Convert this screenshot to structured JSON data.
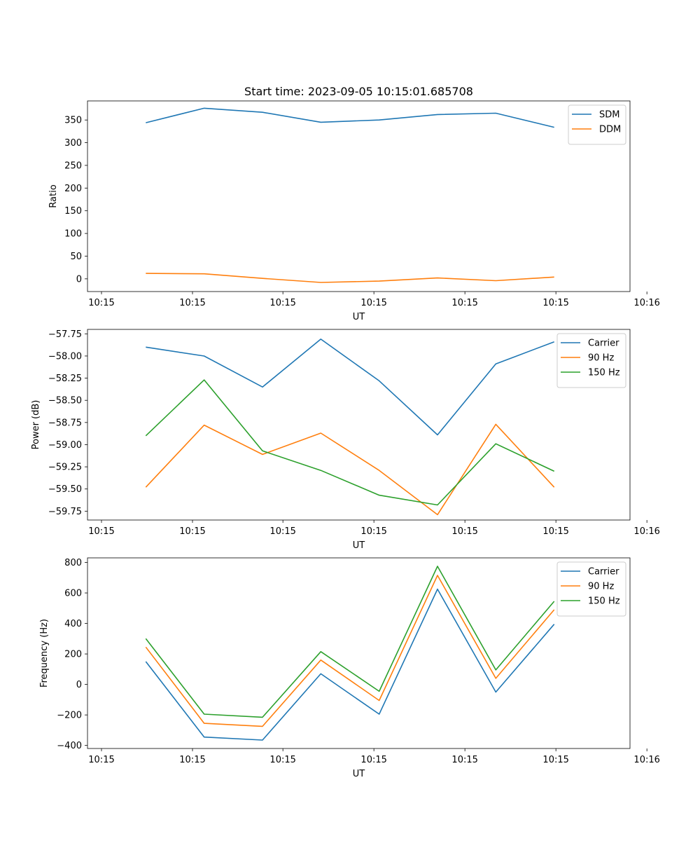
{
  "chart_data": [
    {
      "type": "line",
      "title": "Start time: 2023-09-05 10:15:01.685708",
      "xlabel": "UT",
      "ylabel": "Ratio",
      "xlim": [
        -1,
        8.3
      ],
      "ylim": [
        -28,
        392
      ],
      "x_ticks": [
        {
          "x": -0.76,
          "label": "10:15"
        },
        {
          "x": 0.8,
          "label": "10:15"
        },
        {
          "x": 2.35,
          "label": "10:15"
        },
        {
          "x": 3.91,
          "label": "10:15"
        },
        {
          "x": 5.47,
          "label": "10:15"
        },
        {
          "x": 7.03,
          "label": "10:15"
        },
        {
          "x": 8.59,
          "label": "10:16"
        }
      ],
      "y_ticks": [
        0,
        50,
        100,
        150,
        200,
        250,
        300,
        350
      ],
      "y_tick_labels": [
        "0",
        "50",
        "100",
        "150",
        "200",
        "250",
        "300",
        "350"
      ],
      "legend_position": "top-right",
      "x": [
        0,
        1,
        2,
        3,
        4,
        5,
        6,
        7
      ],
      "series": [
        {
          "name": "SDM",
          "color": "#1f77b4",
          "values": [
            344,
            376,
            367,
            345,
            350,
            362,
            365,
            334
          ]
        },
        {
          "name": "DDM",
          "color": "#ff7f0e",
          "values": [
            12,
            11,
            1,
            -8,
            -5,
            2,
            -4,
            4
          ]
        }
      ]
    },
    {
      "type": "line",
      "title": "",
      "xlabel": "UT",
      "ylabel": "Power (dB)",
      "xlim": [
        -1,
        8.3
      ],
      "ylim": [
        -59.85,
        -57.7
      ],
      "x_ticks": [
        {
          "x": -0.76,
          "label": "10:15"
        },
        {
          "x": 0.8,
          "label": "10:15"
        },
        {
          "x": 2.35,
          "label": "10:15"
        },
        {
          "x": 3.91,
          "label": "10:15"
        },
        {
          "x": 5.47,
          "label": "10:15"
        },
        {
          "x": 7.03,
          "label": "10:15"
        },
        {
          "x": 8.59,
          "label": "10:16"
        }
      ],
      "y_ticks": [
        -59.75,
        -59.5,
        -59.25,
        -59.0,
        -58.75,
        -58.5,
        -58.25,
        -58.0,
        -57.75
      ],
      "y_tick_labels": [
        "−59.75",
        "−59.50",
        "−59.25",
        "−59.00",
        "−58.75",
        "−58.50",
        "−58.25",
        "−58.00",
        "−57.75"
      ],
      "legend_position": "top-right",
      "x": [
        0,
        1,
        2,
        3,
        4,
        5,
        6,
        7
      ],
      "series": [
        {
          "name": "Carrier",
          "color": "#1f77b4",
          "values": [
            -57.9,
            -58.0,
            -58.35,
            -57.81,
            -58.28,
            -58.89,
            -58.09,
            -57.84
          ]
        },
        {
          "name": "90 Hz",
          "color": "#ff7f0e",
          "values": [
            -59.48,
            -58.78,
            -59.11,
            -58.87,
            -59.29,
            -59.79,
            -58.77,
            -59.48
          ]
        },
        {
          "name": "150 Hz",
          "color": "#2ca02c",
          "values": [
            -58.9,
            -58.27,
            -59.07,
            -59.29,
            -59.57,
            -59.68,
            -58.99,
            -59.3
          ]
        }
      ]
    },
    {
      "type": "line",
      "title": "",
      "xlabel": "UT",
      "ylabel": "Frequency (Hz)",
      "xlim": [
        -1,
        8.3
      ],
      "ylim": [
        -420,
        830
      ],
      "x_ticks": [
        {
          "x": -0.76,
          "label": "10:15"
        },
        {
          "x": 0.8,
          "label": "10:15"
        },
        {
          "x": 2.35,
          "label": "10:15"
        },
        {
          "x": 3.91,
          "label": "10:15"
        },
        {
          "x": 5.47,
          "label": "10:15"
        },
        {
          "x": 7.03,
          "label": "10:15"
        },
        {
          "x": 8.59,
          "label": "10:16"
        }
      ],
      "y_ticks": [
        -400,
        -200,
        0,
        200,
        400,
        600,
        800
      ],
      "y_tick_labels": [
        "−400",
        "−200",
        "0",
        "200",
        "400",
        "600",
        "800"
      ],
      "legend_position": "top-right",
      "x": [
        0,
        1,
        2,
        3,
        4,
        5,
        6,
        7
      ],
      "series": [
        {
          "name": "Carrier",
          "color": "#1f77b4",
          "values": [
            150,
            -345,
            -365,
            70,
            -195,
            625,
            -50,
            395
          ]
        },
        {
          "name": "90 Hz",
          "color": "#ff7f0e",
          "values": [
            245,
            -255,
            -275,
            160,
            -105,
            715,
            40,
            490
          ]
        },
        {
          "name": "150 Hz",
          "color": "#2ca02c",
          "values": [
            300,
            -195,
            -215,
            215,
            -45,
            775,
            95,
            545
          ]
        }
      ]
    }
  ]
}
